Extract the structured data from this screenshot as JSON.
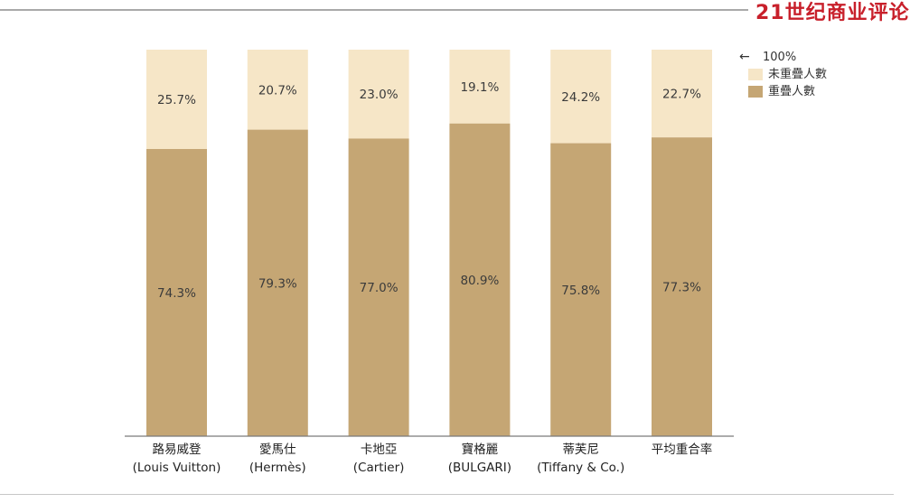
{
  "brand": {
    "logo_text": "21世纪商业评论"
  },
  "colors": {
    "overlap": "#c5a674",
    "non_overlap": "#f6e6c7",
    "axis": "#7a7a7a",
    "brand": "#c8202b"
  },
  "chart_data": {
    "type": "bar",
    "stacked": true,
    "categories": [
      {
        "zh": "路易威登",
        "en": "(Louis Vuitton)"
      },
      {
        "zh": "愛馬仕",
        "en": "(Hermès)"
      },
      {
        "zh": "卡地亞",
        "en": "(Cartier)"
      },
      {
        "zh": "寶格麗",
        "en": "(BULGARI)"
      },
      {
        "zh": "蒂芙尼",
        "en": "(Tiffany & Co.)"
      },
      {
        "zh": "平均重合率",
        "en": ""
      }
    ],
    "series": [
      {
        "name": "重疊人數",
        "values": [
          74.3,
          79.3,
          77.0,
          80.9,
          75.8,
          77.3
        ],
        "labels": [
          "74.3%",
          "79.3%",
          "77.0%",
          "80.9%",
          "75.8%",
          "77.3%"
        ]
      },
      {
        "name": "未重疊人數",
        "values": [
          25.7,
          20.7,
          23.0,
          19.1,
          24.2,
          22.7
        ],
        "labels": [
          "25.7%",
          "20.7%",
          "23.0%",
          "19.1%",
          "24.2%",
          "22.7%"
        ]
      }
    ],
    "ylim": [
      0,
      100
    ],
    "title": "",
    "xlabel": "",
    "ylabel": "",
    "legend": {
      "position": "top-right",
      "total_marker": "100%",
      "items": [
        "未重疊人數",
        "重疊人數"
      ]
    }
  }
}
